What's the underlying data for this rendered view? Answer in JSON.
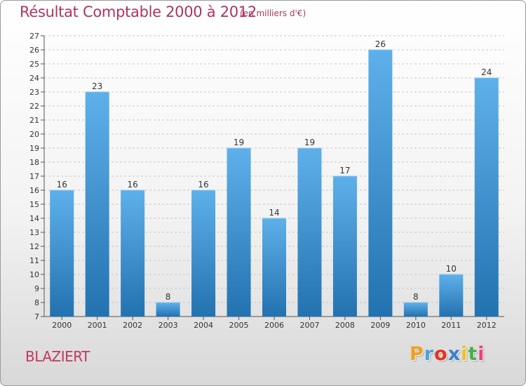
{
  "chart_data": {
    "type": "bar",
    "title": "Résultat Comptable 2000 à 2012",
    "subtitle": "(en milliers d'€)",
    "categories": [
      "2000",
      "2001",
      "2002",
      "2003",
      "2004",
      "2005",
      "2006",
      "2007",
      "2008",
      "2009",
      "2010",
      "2011",
      "2012"
    ],
    "values": [
      16,
      23,
      16,
      8,
      16,
      19,
      14,
      19,
      17,
      26,
      8,
      10,
      24
    ],
    "ylim": [
      7,
      27
    ],
    "yticks": [
      7,
      8,
      9,
      10,
      11,
      12,
      13,
      14,
      15,
      16,
      17,
      18,
      19,
      20,
      21,
      22,
      23,
      24,
      25,
      26,
      27
    ],
    "grid": true,
    "xlabel": "",
    "ylabel": ""
  },
  "commune": "BLAZIERT",
  "logo": {
    "letters": [
      "P",
      "r",
      "o",
      "x",
      "i",
      "t",
      "i"
    ],
    "colors": [
      "#f0a020",
      "#4aa0dc",
      "#e83020",
      "#3c7fd0",
      "#f0c020",
      "#48b048",
      "#e84080"
    ]
  },
  "colors": {
    "title": "#b0345c",
    "bar_light": "#5dafe8",
    "bar_dark": "#2475b2"
  }
}
